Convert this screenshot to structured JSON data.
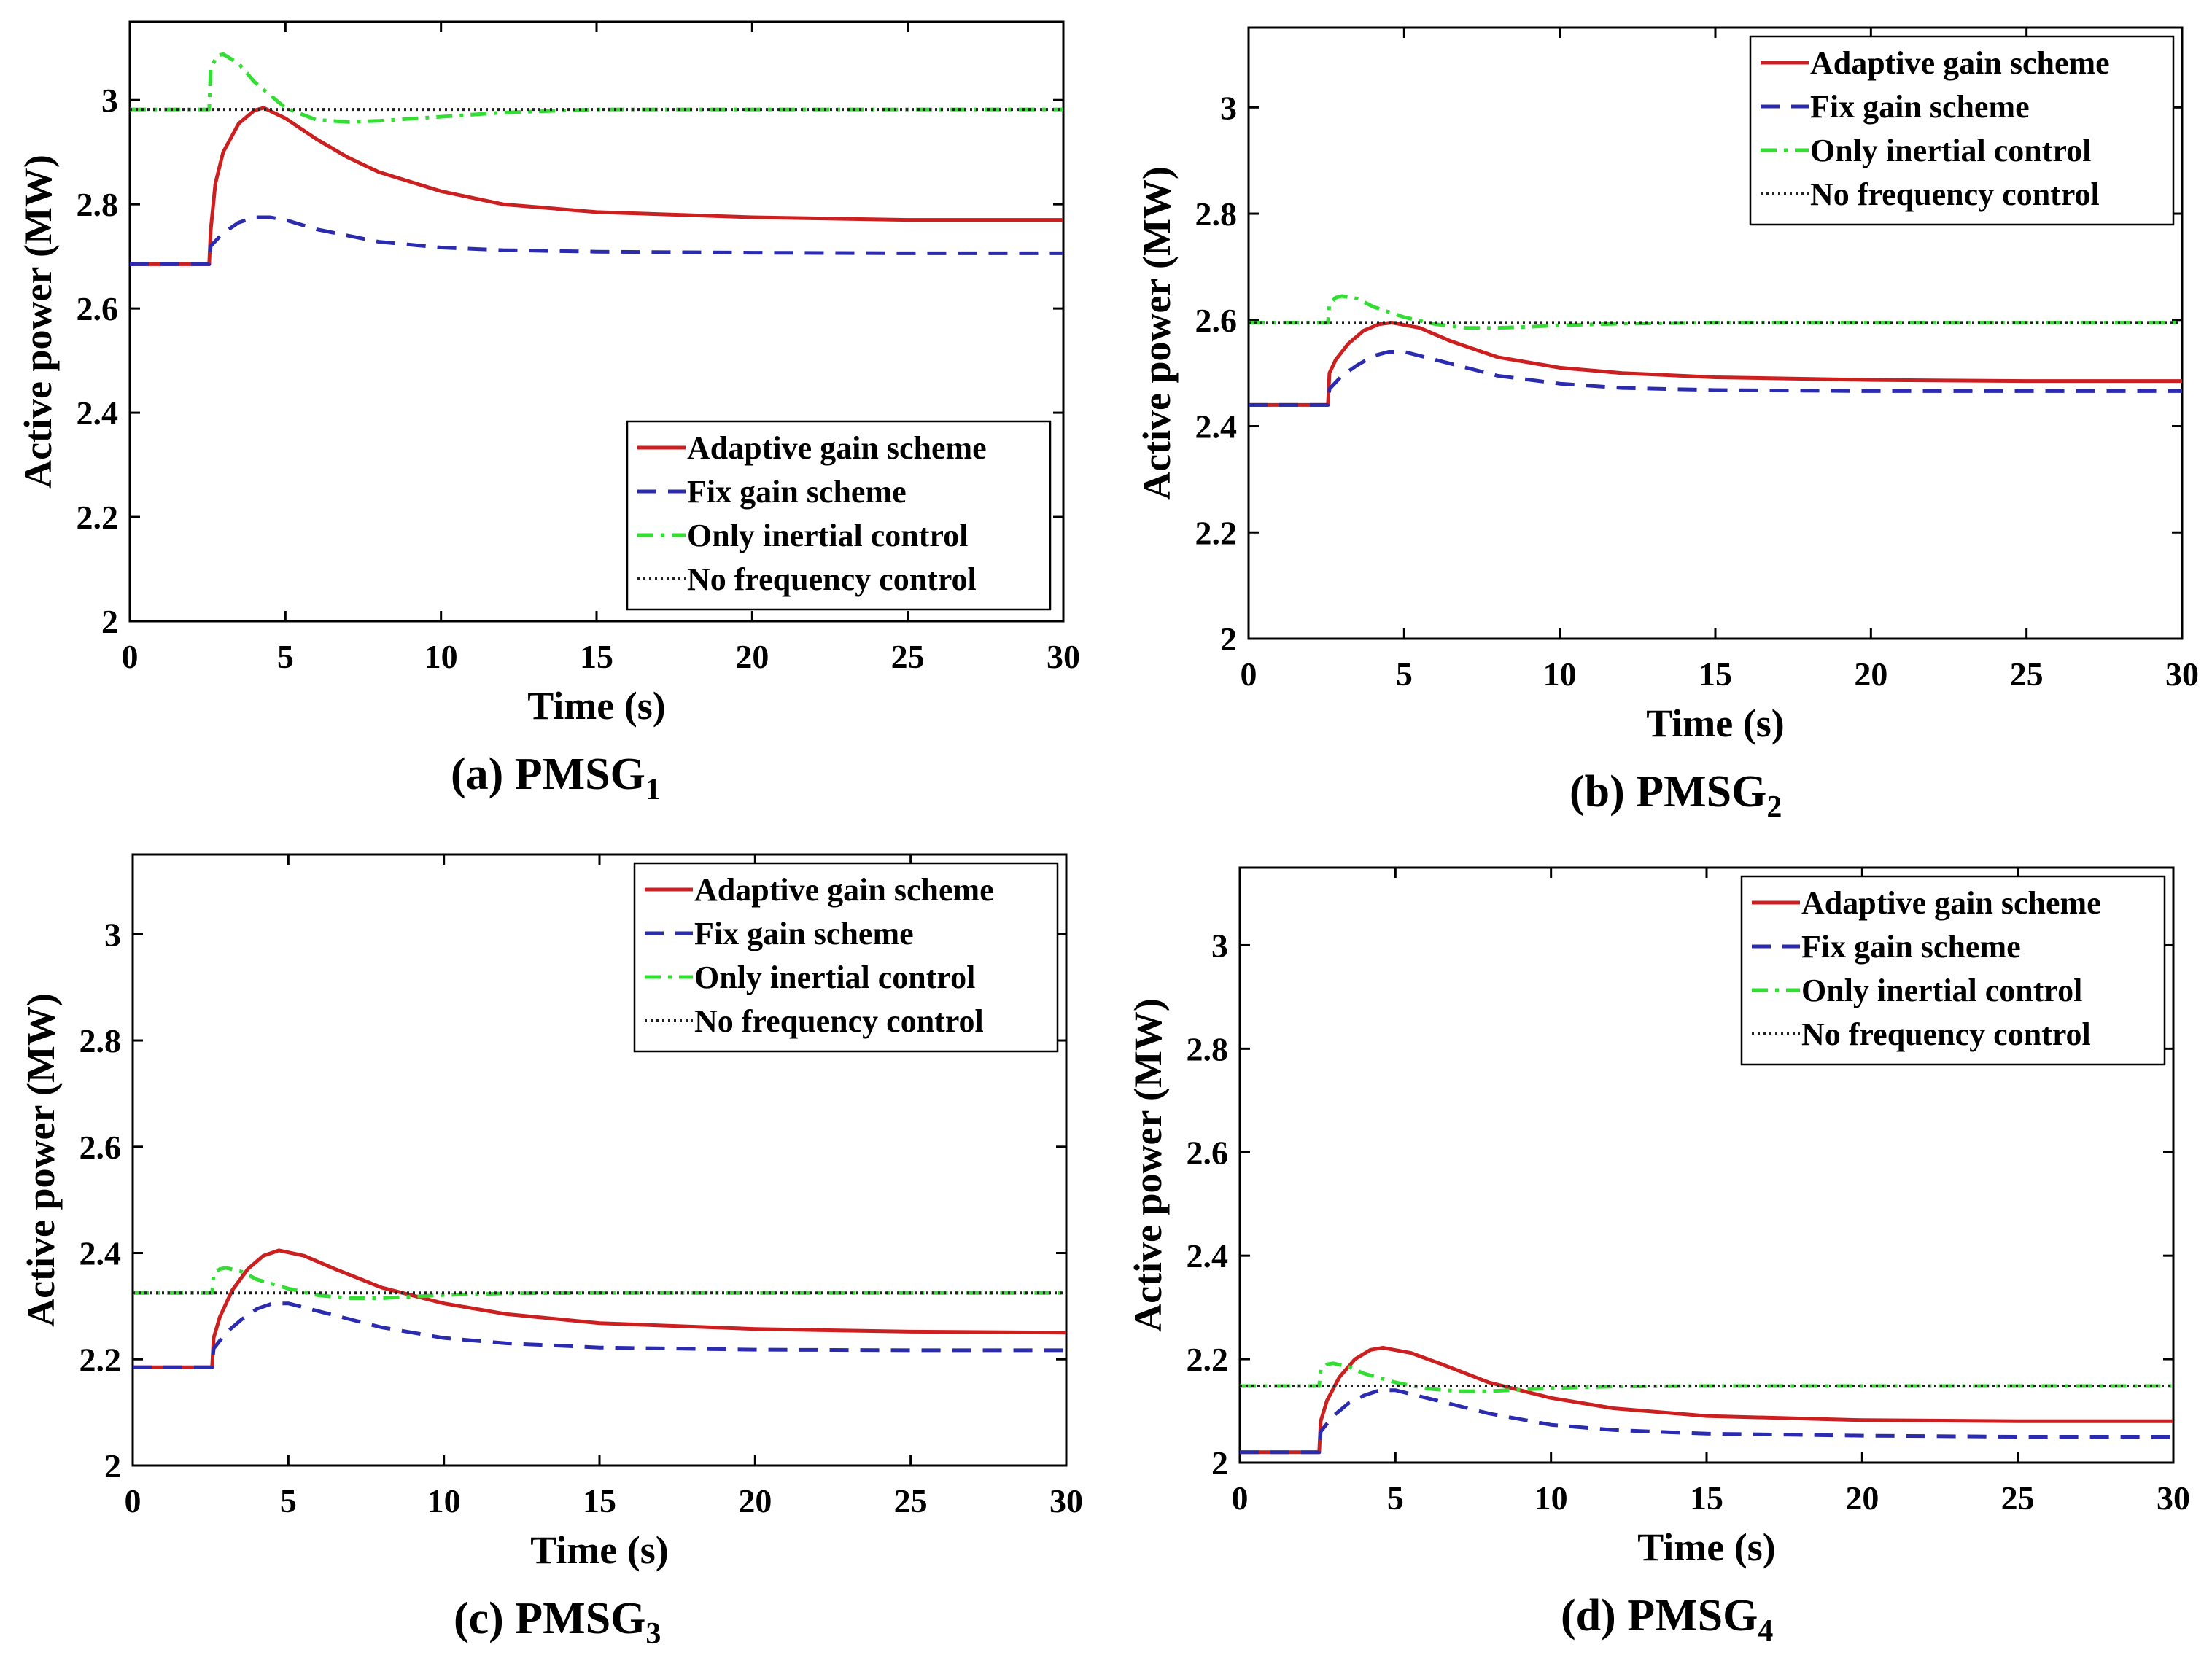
{
  "chart_data": [
    {
      "type": "line",
      "caption": "(a) PMSG",
      "caption_sub": "1",
      "xlabel": "Time (s)",
      "ylabel": "Active power (MW)",
      "xlim": [
        0,
        30
      ],
      "ylim": [
        2,
        3.15
      ],
      "xticks": [
        0,
        5,
        10,
        15,
        20,
        25,
        30
      ],
      "yticks": [
        2,
        2.2,
        2.4,
        2.6,
        2.8,
        3
      ],
      "legend_position": "bottom-right",
      "series": [
        {
          "name": "Adaptive gain scheme",
          "color": "#cc1f1f",
          "style": "solid",
          "x": [
            0,
            2.55,
            2.6,
            2.75,
            3.0,
            3.5,
            4.0,
            4.3,
            5,
            6,
            7,
            8,
            10,
            12,
            15,
            20,
            25,
            30
          ],
          "y": [
            2.685,
            2.685,
            2.75,
            2.84,
            2.9,
            2.955,
            2.98,
            2.985,
            2.965,
            2.925,
            2.89,
            2.862,
            2.825,
            2.8,
            2.785,
            2.775,
            2.77,
            2.77
          ]
        },
        {
          "name": "Fix gain scheme",
          "color": "#2b2bb0",
          "style": "dashed",
          "x": [
            0,
            2.55,
            2.6,
            3.0,
            3.5,
            4.0,
            4.5,
            5,
            6,
            8,
            10,
            12,
            15,
            20,
            25,
            30
          ],
          "y": [
            2.685,
            2.685,
            2.72,
            2.745,
            2.765,
            2.775,
            2.775,
            2.77,
            2.752,
            2.728,
            2.717,
            2.712,
            2.709,
            2.707,
            2.706,
            2.706
          ]
        },
        {
          "name": "Only inertial control",
          "color": "#33dd33",
          "style": "dashdot",
          "x": [
            0,
            2.5,
            2.55,
            2.6,
            2.8,
            3.0,
            3.5,
            4.0,
            5,
            6,
            7,
            8,
            10,
            12,
            15,
            20,
            30
          ],
          "y": [
            2.982,
            2.982,
            2.982,
            3.06,
            3.085,
            3.088,
            3.07,
            3.035,
            2.985,
            2.962,
            2.958,
            2.96,
            2.968,
            2.976,
            2.982,
            2.982,
            2.982
          ]
        },
        {
          "name": "No frequency control",
          "color": "#222222",
          "style": "dotted",
          "x": [
            0,
            30
          ],
          "y": [
            2.982,
            2.982
          ]
        }
      ]
    },
    {
      "type": "line",
      "caption": "(b) PMSG",
      "caption_sub": "2",
      "xlabel": "Time (s)",
      "ylabel": "Active power (MW)",
      "xlim": [
        0,
        30
      ],
      "ylim": [
        2,
        3.15
      ],
      "xticks": [
        0,
        5,
        10,
        15,
        20,
        25,
        30
      ],
      "yticks": [
        2,
        2.2,
        2.4,
        2.6,
        2.8,
        3
      ],
      "legend_position": "top-right",
      "series": [
        {
          "name": "Adaptive gain scheme",
          "color": "#cc1f1f",
          "style": "solid",
          "x": [
            0,
            2.55,
            2.6,
            2.8,
            3.2,
            3.7,
            4.2,
            4.6,
            5.5,
            6.5,
            8,
            10,
            12,
            15,
            20,
            25,
            30
          ],
          "y": [
            2.44,
            2.44,
            2.5,
            2.525,
            2.555,
            2.58,
            2.592,
            2.595,
            2.585,
            2.56,
            2.53,
            2.51,
            2.5,
            2.492,
            2.487,
            2.485,
            2.485
          ]
        },
        {
          "name": "Fix gain scheme",
          "color": "#2b2bb0",
          "style": "dashed",
          "x": [
            0,
            2.55,
            2.6,
            3.0,
            3.5,
            4.0,
            4.5,
            5.0,
            6,
            8,
            10,
            12,
            15,
            20,
            25,
            30
          ],
          "y": [
            2.44,
            2.44,
            2.47,
            2.495,
            2.515,
            2.532,
            2.54,
            2.54,
            2.525,
            2.495,
            2.48,
            2.472,
            2.468,
            2.466,
            2.466,
            2.466
          ]
        },
        {
          "name": "Only inertial control",
          "color": "#33dd33",
          "style": "dashdot",
          "x": [
            0,
            2.5,
            2.55,
            2.6,
            2.8,
            3.0,
            3.5,
            4.0,
            5,
            6,
            7,
            8,
            9,
            10,
            12,
            15,
            30
          ],
          "y": [
            2.595,
            2.595,
            2.595,
            2.63,
            2.642,
            2.645,
            2.64,
            2.625,
            2.605,
            2.592,
            2.585,
            2.585,
            2.587,
            2.59,
            2.593,
            2.595,
            2.595
          ]
        },
        {
          "name": "No frequency control",
          "color": "#222222",
          "style": "dotted",
          "x": [
            0,
            30
          ],
          "y": [
            2.595,
            2.595
          ]
        }
      ]
    },
    {
      "type": "line",
      "caption": "(c) PMSG",
      "caption_sub": "3",
      "xlabel": "Time (s)",
      "ylabel": "Active power (MW)",
      "xlim": [
        0,
        30
      ],
      "ylim": [
        2,
        3.15
      ],
      "xticks": [
        0,
        5,
        10,
        15,
        20,
        25,
        30
      ],
      "yticks": [
        2,
        2.2,
        2.4,
        2.6,
        2.8,
        3
      ],
      "legend_position": "top-right",
      "series": [
        {
          "name": "Adaptive gain scheme",
          "color": "#cc1f1f",
          "style": "solid",
          "x": [
            0,
            2.55,
            2.6,
            2.8,
            3.2,
            3.7,
            4.2,
            4.7,
            5.5,
            6.5,
            8,
            10,
            12,
            15,
            20,
            25,
            30
          ],
          "y": [
            2.185,
            2.185,
            2.24,
            2.28,
            2.33,
            2.37,
            2.395,
            2.405,
            2.395,
            2.37,
            2.335,
            2.305,
            2.285,
            2.268,
            2.257,
            2.252,
            2.25
          ]
        },
        {
          "name": "Fix gain scheme",
          "color": "#2b2bb0",
          "style": "dashed",
          "x": [
            0,
            2.55,
            2.6,
            3.0,
            3.5,
            4.0,
            4.5,
            5.0,
            6,
            8,
            10,
            12,
            15,
            20,
            25,
            30
          ],
          "y": [
            2.185,
            2.185,
            2.22,
            2.25,
            2.275,
            2.295,
            2.305,
            2.305,
            2.29,
            2.26,
            2.24,
            2.23,
            2.222,
            2.218,
            2.217,
            2.217
          ]
        },
        {
          "name": "Only inertial control",
          "color": "#33dd33",
          "style": "dashdot",
          "x": [
            0,
            2.5,
            2.55,
            2.6,
            2.8,
            3.0,
            3.5,
            4.0,
            5,
            6,
            7,
            8,
            9,
            10,
            12,
            15,
            30
          ],
          "y": [
            2.325,
            2.325,
            2.325,
            2.36,
            2.37,
            2.372,
            2.365,
            2.35,
            2.333,
            2.32,
            2.315,
            2.315,
            2.318,
            2.321,
            2.324,
            2.325,
            2.325
          ]
        },
        {
          "name": "No frequency control",
          "color": "#222222",
          "style": "dotted",
          "x": [
            0,
            30
          ],
          "y": [
            2.325,
            2.325
          ]
        }
      ]
    },
    {
      "type": "line",
      "caption": "(d) PMSG",
      "caption_sub": "4",
      "xlabel": "Time (s)",
      "ylabel": "Active power (MW)",
      "xlim": [
        0,
        30
      ],
      "ylim": [
        2,
        3.15
      ],
      "xticks": [
        0,
        5,
        10,
        15,
        20,
        25,
        30
      ],
      "yticks": [
        2,
        2.2,
        2.4,
        2.6,
        2.8,
        3
      ],
      "legend_position": "top-right",
      "series": [
        {
          "name": "Adaptive gain scheme",
          "color": "#cc1f1f",
          "style": "solid",
          "x": [
            0,
            2.55,
            2.6,
            2.8,
            3.2,
            3.7,
            4.2,
            4.6,
            5.5,
            6.5,
            8,
            10,
            12,
            15,
            20,
            25,
            30
          ],
          "y": [
            2.02,
            2.02,
            2.08,
            2.12,
            2.165,
            2.2,
            2.218,
            2.222,
            2.212,
            2.19,
            2.155,
            2.125,
            2.105,
            2.09,
            2.082,
            2.08,
            2.08
          ]
        },
        {
          "name": "Fix gain scheme",
          "color": "#2b2bb0",
          "style": "dashed",
          "x": [
            0,
            2.55,
            2.6,
            3.0,
            3.5,
            4.0,
            4.5,
            5.0,
            6,
            8,
            10,
            12,
            15,
            20,
            25,
            30
          ],
          "y": [
            2.02,
            2.02,
            2.06,
            2.09,
            2.115,
            2.13,
            2.14,
            2.14,
            2.125,
            2.095,
            2.073,
            2.063,
            2.056,
            2.052,
            2.05,
            2.05
          ]
        },
        {
          "name": "Only inertial control",
          "color": "#33dd33",
          "style": "dashdot",
          "x": [
            0,
            2.5,
            2.55,
            2.6,
            2.8,
            3.0,
            3.5,
            4.0,
            5,
            6,
            7,
            8,
            9,
            10,
            12,
            15,
            30
          ],
          "y": [
            2.148,
            2.148,
            2.148,
            2.18,
            2.19,
            2.192,
            2.185,
            2.172,
            2.155,
            2.143,
            2.138,
            2.138,
            2.141,
            2.144,
            2.147,
            2.148,
            2.148
          ]
        },
        {
          "name": "No frequency control",
          "color": "#222222",
          "style": "dotted",
          "x": [
            0,
            30
          ],
          "y": [
            2.148,
            2.148
          ]
        }
      ]
    }
  ]
}
